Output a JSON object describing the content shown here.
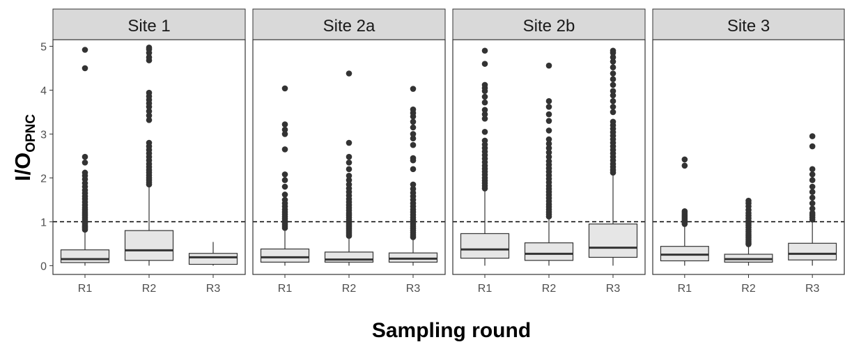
{
  "chart_data": {
    "type": "boxplot",
    "xlabel": "Sampling round",
    "ylabel": {
      "main": "I/O",
      "sub": "OPNC"
    },
    "ylim": [
      -0.2,
      5.15
    ],
    "yticks": [
      0,
      1,
      2,
      3,
      4,
      5
    ],
    "reference_line": 1,
    "categories": [
      "R1",
      "R2",
      "R3"
    ],
    "colors": {
      "box_fill": "#e6e6e6",
      "box_stroke": "#333333",
      "strip_fill": "#d9d9d9",
      "outlier": "#333333",
      "panel_border": "#333333"
    },
    "facets": [
      {
        "name": "Site 1",
        "boxes": [
          {
            "category": "R1",
            "q1": 0.07,
            "median": 0.15,
            "q3": 0.36,
            "whisker_low": 0.0,
            "whisker_high": 0.8,
            "outliers": [
              0.82,
              0.85,
              0.88,
              0.91,
              0.95,
              0.98,
              1.02,
              1.06,
              1.1,
              1.14,
              1.18,
              1.22,
              1.27,
              1.32,
              1.38,
              1.45,
              1.52,
              1.58,
              1.65,
              1.72,
              1.8,
              1.88,
              1.97,
              2.05,
              2.12,
              2.35,
              2.48,
              4.5,
              4.92
            ]
          },
          {
            "category": "R2",
            "q1": 0.12,
            "median": 0.35,
            "q3": 0.8,
            "whisker_low": 0.0,
            "whisker_high": 1.82,
            "outliers": [
              1.85,
              1.9,
              1.95,
              2.0,
              2.06,
              2.12,
              2.18,
              2.25,
              2.32,
              2.4,
              2.48,
              2.56,
              2.64,
              2.72,
              2.8,
              3.32,
              3.42,
              3.52,
              3.62,
              3.7,
              3.78,
              3.86,
              3.94,
              4.68,
              4.75,
              4.85,
              4.93,
              4.97
            ]
          },
          {
            "category": "R3",
            "q1": 0.03,
            "median": 0.19,
            "q3": 0.28,
            "whisker_low": 0.0,
            "whisker_high": 0.54,
            "outliers": []
          }
        ]
      },
      {
        "name": "Site 2a",
        "boxes": [
          {
            "category": "R1",
            "q1": 0.08,
            "median": 0.19,
            "q3": 0.38,
            "whisker_low": 0.0,
            "whisker_high": 0.83,
            "outliers": [
              0.86,
              0.9,
              0.94,
              0.98,
              1.02,
              1.07,
              1.12,
              1.17,
              1.22,
              1.28,
              1.35,
              1.42,
              1.5,
              1.62,
              1.8,
              1.95,
              2.08,
              2.65,
              3.0,
              3.1,
              3.22,
              4.04
            ]
          },
          {
            "category": "R2",
            "q1": 0.08,
            "median": 0.14,
            "q3": 0.31,
            "whisker_low": 0.0,
            "whisker_high": 0.65,
            "outliers": [
              0.68,
              0.72,
              0.76,
              0.8,
              0.84,
              0.88,
              0.92,
              0.96,
              1.0,
              1.05,
              1.1,
              1.15,
              1.2,
              1.26,
              1.32,
              1.38,
              1.45,
              1.52,
              1.6,
              1.68,
              1.76,
              1.85,
              1.95,
              2.05,
              2.2,
              2.35,
              2.48,
              2.8,
              4.38
            ]
          },
          {
            "category": "R3",
            "q1": 0.08,
            "median": 0.16,
            "q3": 0.29,
            "whisker_low": 0.0,
            "whisker_high": 0.62,
            "outliers": [
              0.65,
              0.7,
              0.75,
              0.8,
              0.85,
              0.9,
              0.95,
              1.0,
              1.05,
              1.1,
              1.16,
              1.22,
              1.28,
              1.35,
              1.42,
              1.5,
              1.58,
              1.66,
              1.75,
              1.85,
              2.2,
              2.4,
              2.45,
              2.75,
              2.9,
              3.0,
              3.15,
              3.28,
              3.4,
              3.48,
              3.56,
              4.03
            ]
          }
        ]
      },
      {
        "name": "Site 2b",
        "boxes": [
          {
            "category": "R1",
            "q1": 0.17,
            "median": 0.37,
            "q3": 0.73,
            "whisker_low": 0.0,
            "whisker_high": 1.72,
            "outliers": [
              1.76,
              1.82,
              1.88,
              1.94,
              2.0,
              2.07,
              2.14,
              2.21,
              2.28,
              2.36,
              2.44,
              2.52,
              2.6,
              2.68,
              2.76,
              2.85,
              3.05,
              3.35,
              3.45,
              3.55,
              3.72,
              3.85,
              3.98,
              4.05,
              4.12,
              4.6,
              4.9
            ]
          },
          {
            "category": "R2",
            "q1": 0.12,
            "median": 0.27,
            "q3": 0.52,
            "whisker_low": 0.0,
            "whisker_high": 1.08,
            "outliers": [
              1.12,
              1.17,
              1.22,
              1.28,
              1.34,
              1.4,
              1.47,
              1.54,
              1.61,
              1.68,
              1.75,
              1.82,
              1.9,
              1.98,
              2.06,
              2.14,
              2.22,
              2.3,
              2.38,
              2.48,
              2.58,
              2.68,
              2.78,
              2.88,
              3.08,
              3.3,
              3.45,
              3.62,
              3.75,
              4.56
            ]
          },
          {
            "category": "R3",
            "q1": 0.19,
            "median": 0.41,
            "q3": 0.95,
            "whisker_low": 0.0,
            "whisker_high": 2.08,
            "outliers": [
              2.12,
              2.18,
              2.25,
              2.32,
              2.4,
              2.48,
              2.56,
              2.64,
              2.72,
              2.8,
              2.88,
              2.96,
              3.04,
              3.12,
              3.2,
              3.28,
              3.5,
              3.62,
              3.75,
              3.88,
              3.98,
              4.12,
              4.25,
              4.38,
              4.52,
              4.65,
              4.75,
              4.85,
              4.9
            ]
          }
        ]
      },
      {
        "name": "Site 3",
        "boxes": [
          {
            "category": "R1",
            "q1": 0.11,
            "median": 0.25,
            "q3": 0.44,
            "whisker_low": 0.0,
            "whisker_high": 0.92,
            "outliers": [
              0.95,
              0.99,
              1.03,
              1.07,
              1.11,
              1.15,
              1.2,
              1.24,
              2.28,
              2.42
            ]
          },
          {
            "category": "R2",
            "q1": 0.08,
            "median": 0.15,
            "q3": 0.26,
            "whisker_low": 0.0,
            "whisker_high": 0.46,
            "outliers": [
              0.49,
              0.52,
              0.56,
              0.6,
              0.64,
              0.68,
              0.72,
              0.77,
              0.82,
              0.87,
              0.92,
              0.97,
              1.02,
              1.08,
              1.14,
              1.2,
              1.27,
              1.35,
              1.42,
              1.48
            ]
          },
          {
            "category": "R3",
            "q1": 0.13,
            "median": 0.27,
            "q3": 0.51,
            "whisker_low": 0.0,
            "whisker_high": 1.02,
            "outliers": [
              1.05,
              1.1,
              1.15,
              1.2,
              1.3,
              1.42,
              1.55,
              1.68,
              1.8,
              1.95,
              2.08,
              2.2,
              2.72,
              2.95
            ]
          }
        ]
      }
    ]
  }
}
